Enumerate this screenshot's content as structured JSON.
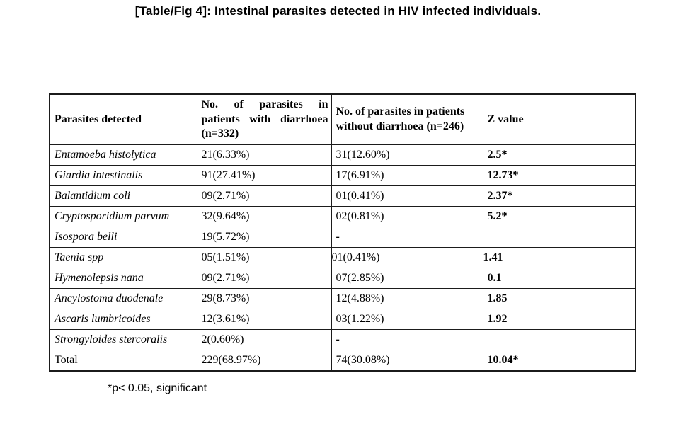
{
  "title": "[Table/Fig 4]: Intestinal parasites detected in HIV infected individuals.",
  "footnote": "*p< 0.05, significant",
  "table": {
    "headers": [
      "Parasites detected",
      "No. of parasites in patients with diarrhoea (n=332)",
      "No. of parasites in patients without diarrhoea (n=246)",
      "Z value"
    ],
    "rows": [
      {
        "parasite": "Entamoeba histolytica",
        "with_diarrhoea": "21(6.33%)",
        "without_diarrhoea": "31(12.60%)",
        "z_value": "2.5*",
        "italic": true
      },
      {
        "parasite": "Giardia intestinalis",
        "with_diarrhoea": "91(27.41%)",
        "without_diarrhoea": "17(6.91%)",
        "z_value": "12.73*",
        "italic": true
      },
      {
        "parasite": "Balantidium coli",
        "with_diarrhoea": "09(2.71%)",
        "without_diarrhoea": "01(0.41%)",
        "z_value": "2.37*",
        "italic": true
      },
      {
        "parasite": "Cryptosporidium parvum",
        "with_diarrhoea": "32(9.64%)",
        "without_diarrhoea": "02(0.81%)",
        "z_value": "5.2*",
        "italic": true
      },
      {
        "parasite": "Isospora belli",
        "with_diarrhoea": "19(5.72%)",
        "without_diarrhoea": "-",
        "z_value": "",
        "italic": true
      },
      {
        "parasite": "Taenia spp",
        "with_diarrhoea": "05(1.51%)",
        "without_diarrhoea": "01(0.41%)",
        "z_value": "1.41",
        "italic": true,
        "flush": [
          "without_diarrhoea",
          "z_value"
        ]
      },
      {
        "parasite": "Hymenolepsis nana",
        "with_diarrhoea": "09(2.71%)",
        "without_diarrhoea": "07(2.85%)",
        "z_value": "0.1",
        "italic": true
      },
      {
        "parasite": "Ancylostoma duodenale",
        "with_diarrhoea": "29(8.73%)",
        "without_diarrhoea": "12(4.88%)",
        "z_value": "1.85",
        "italic": true
      },
      {
        "parasite": "Ascaris lumbricoides",
        "with_diarrhoea": "12(3.61%)",
        "without_diarrhoea": "03(1.22%)",
        "z_value": "1.92",
        "italic": true
      },
      {
        "parasite": "Strongyloides stercoralis",
        "with_diarrhoea": "2(0.60%)",
        "without_diarrhoea": "-",
        "z_value": "",
        "italic": true
      },
      {
        "parasite": "Total",
        "with_diarrhoea": "229(68.97%)",
        "without_diarrhoea": "74(30.08%)",
        "z_value": "10.04*",
        "italic": false
      }
    ]
  }
}
